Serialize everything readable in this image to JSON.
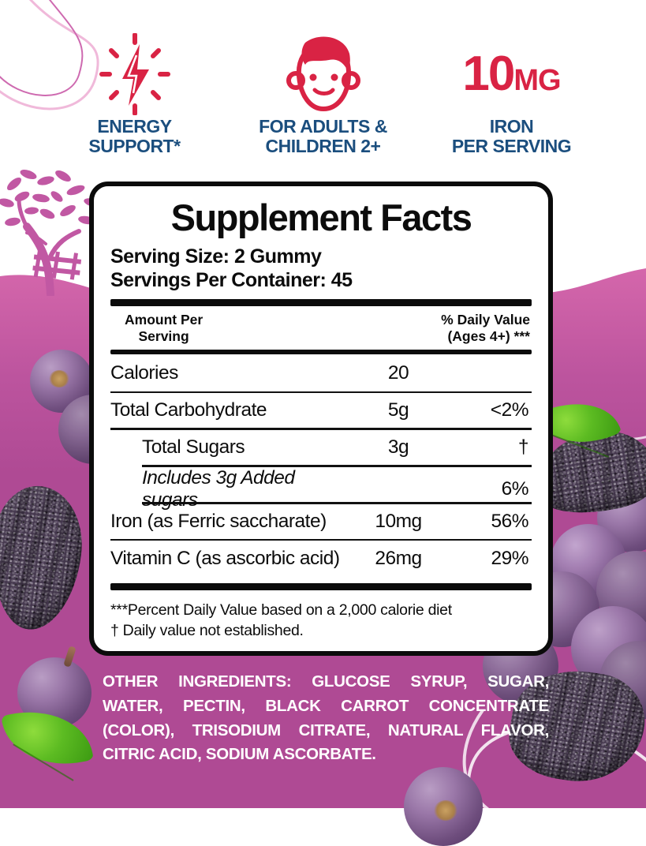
{
  "features": [
    {
      "icon": "lightning-icon",
      "line1": "ENERGY",
      "line2": "SUPPORT*"
    },
    {
      "icon": "child-face-icon",
      "line1": "FOR ADULTS &",
      "line2": "CHILDREN 2+"
    },
    {
      "big": "10",
      "unit": "MG",
      "line1": "IRON",
      "line2": "PER SERVING"
    }
  ],
  "panel": {
    "title": "Supplement Facts",
    "serving_size": "Serving Size: 2 Gummy",
    "servings_per_container": "Servings Per Container: 45",
    "header": {
      "amount_line1": "Amount Per",
      "amount_line2": "Serving",
      "dv_line1": "% Daily Value",
      "dv_line2": "(Ages 4+) ***"
    },
    "rows": [
      {
        "name": "Calories",
        "amount": "20",
        "dv": "",
        "indent": false,
        "italic": false
      },
      {
        "name": "Total Carbohydrate",
        "amount": "5g",
        "dv": "<2%",
        "indent": false,
        "italic": false
      },
      {
        "name": "Total Sugars",
        "amount": "3g",
        "dv": "†",
        "indent": true,
        "italic": false
      },
      {
        "name": "Includes 3g Added sugars",
        "amount": "",
        "dv": "6%",
        "indent": true,
        "italic": true
      },
      {
        "name": "Iron (as Ferric saccharate)",
        "amount": "10mg",
        "dv": "56%",
        "indent": false,
        "italic": false
      },
      {
        "name": "Vitamin C (as ascorbic acid)",
        "amount": "26mg",
        "dv": "29%",
        "indent": false,
        "italic": false
      }
    ],
    "footnote_line1": "***Percent Daily Value based on a 2,000 calorie diet",
    "footnote_line2": "† Daily value not established."
  },
  "other_ingredients": {
    "label": "OTHER INGREDIENTS:",
    "text": " GLUCOSE SYRUP, SUGAR, WATER, PECTIN, BLACK CARROT CONCENTRATE (COLOR), TRISODIUM CITRATE, NATURAL FLAVOR, CITRIC ACID, SODIUM ASCORBATE."
  },
  "colors": {
    "accent_red": "#D92344",
    "accent_navy": "#1B4E7E",
    "background_pink": "#B04D97",
    "background_pink_light": "#D668AC",
    "grape_purple": "#6E4D7D",
    "leaf_green": "#5CBB22",
    "panel_border": "#0B0B0B"
  }
}
